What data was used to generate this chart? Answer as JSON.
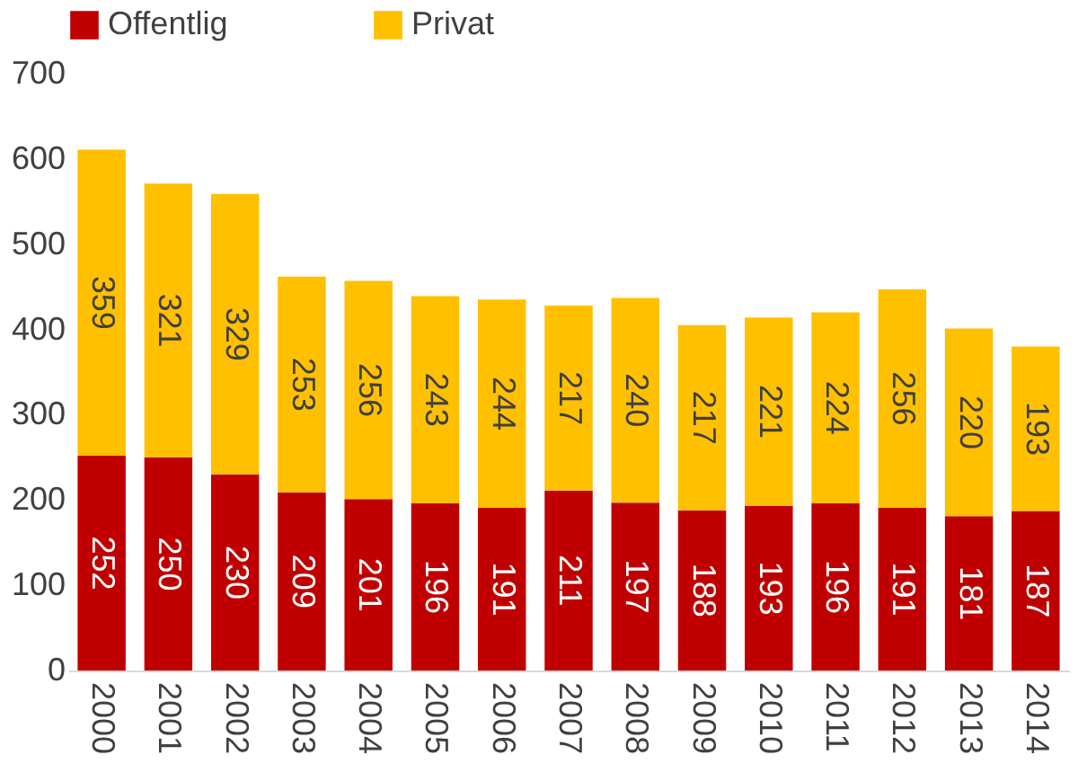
{
  "chart_data": {
    "type": "bar",
    "stacked": true,
    "categories": [
      "2000",
      "2001",
      "2002",
      "2003",
      "2004",
      "2005",
      "2006",
      "2007",
      "2008",
      "2009",
      "2010",
      "2011",
      "2012",
      "2013",
      "2014"
    ],
    "series": [
      {
        "name": "Offentlig",
        "color": "#c00000",
        "values": [
          252,
          250,
          230,
          209,
          201,
          196,
          191,
          211,
          197,
          188,
          193,
          196,
          191,
          181,
          187
        ]
      },
      {
        "name": "Privat",
        "color": "#ffc000",
        "values": [
          359,
          321,
          329,
          253,
          256,
          243,
          244,
          217,
          240,
          217,
          221,
          224,
          256,
          220,
          193
        ]
      }
    ],
    "ylim": [
      0,
      700
    ],
    "yticks": [
      0,
      100,
      200,
      300,
      400,
      500,
      600,
      700
    ],
    "grid": false,
    "legend": "top",
    "data_labels": true
  }
}
